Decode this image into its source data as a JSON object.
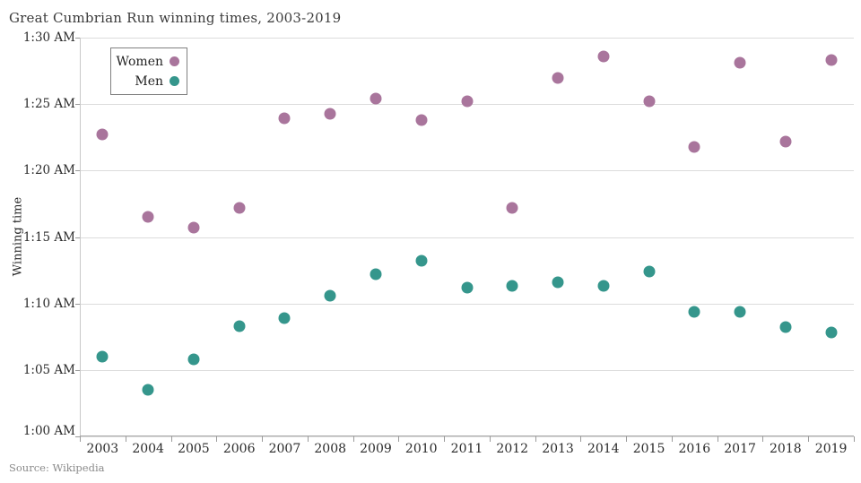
{
  "title": "Great Cumbrian Run winning times, 2003-2019",
  "source": "Source: Wikipedia",
  "colors": {
    "women": "#a9759c",
    "men": "#35968c",
    "gridline": "#dcdcdc",
    "axis": "#a8a8a8",
    "tick_text": "#2b2b2b",
    "title_text": "#3b3b3b",
    "source_text": "#8a8a8a",
    "background": "#ffffff"
  },
  "chart_data": {
    "type": "scatter",
    "title": "Great Cumbrian Run winning times, 2003-2019",
    "xlabel": "",
    "ylabel": "Winning time",
    "x": [
      2003,
      2004,
      2005,
      2006,
      2007,
      2008,
      2009,
      2010,
      2011,
      2012,
      2013,
      2014,
      2015,
      2016,
      2017,
      2018,
      2019
    ],
    "series": [
      {
        "name": "Women",
        "color": "#a9759c",
        "value_unit": "decimal minutes past midnight (82.7 = 1:22:42 AM)",
        "values_minutes": [
          82.7,
          76.5,
          75.7,
          77.2,
          83.9,
          84.3,
          85.4,
          83.8,
          85.2,
          77.2,
          87.0,
          88.6,
          85.2,
          81.8,
          88.1,
          82.2,
          88.3
        ]
      },
      {
        "name": "Men",
        "color": "#35968c",
        "value_unit": "decimal minutes past midnight (66.0 = 1:06:00 AM)",
        "values_minutes": [
          66.0,
          63.5,
          65.8,
          68.3,
          68.9,
          70.6,
          72.2,
          73.2,
          71.2,
          71.3,
          71.6,
          71.3,
          72.4,
          69.4,
          69.4,
          68.2,
          67.8
        ]
      }
    ],
    "y_axis": {
      "range_minutes": [
        60,
        90
      ],
      "ticks": [
        {
          "label": "1:30 AM",
          "minutes": 90
        },
        {
          "label": "1:25 AM",
          "minutes": 85
        },
        {
          "label": "1:20 AM",
          "minutes": 80
        },
        {
          "label": "1:15 AM",
          "minutes": 75
        },
        {
          "label": "1:10 AM",
          "minutes": 70
        },
        {
          "label": "1:05 AM",
          "minutes": 65
        },
        {
          "label": "1:00 AM",
          "minutes": 60
        }
      ]
    },
    "grid": true,
    "legend_position": "top-left-inside"
  }
}
